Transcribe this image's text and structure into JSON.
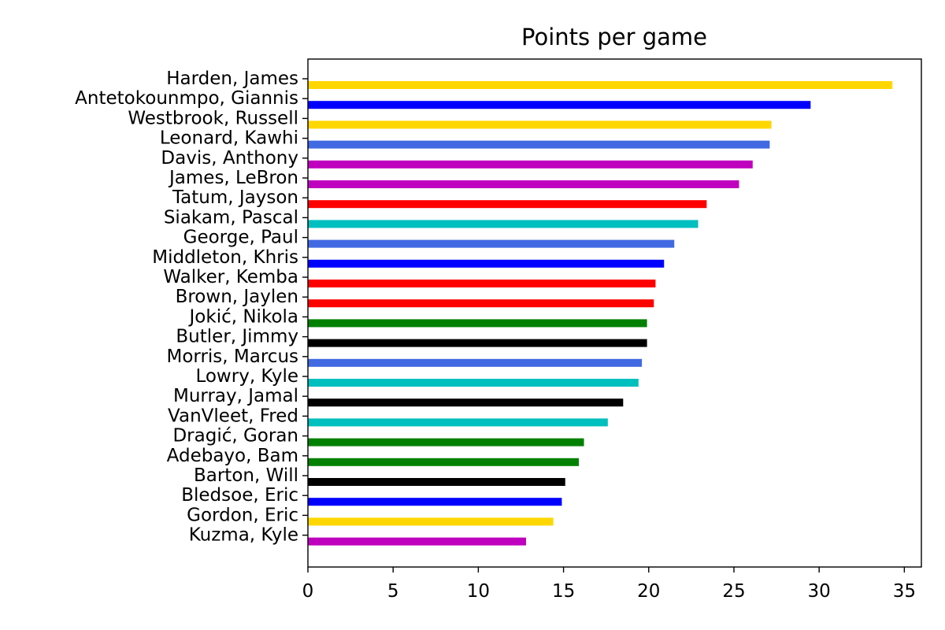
{
  "chart_data": {
    "type": "bar",
    "orientation": "horizontal",
    "title": "Points per game",
    "xlabel": "",
    "ylabel": "",
    "xlim": [
      0,
      36
    ],
    "xticks": [
      0,
      5,
      10,
      15,
      20,
      25,
      30,
      35
    ],
    "grid": false,
    "legend": "none",
    "categories": [
      "Harden, James",
      "Antetokounmpo, Giannis",
      "Westbrook, Russell",
      "Leonard, Kawhi",
      "Davis, Anthony",
      "James, LeBron",
      "Tatum, Jayson",
      "Siakam, Pascal",
      "George, Paul",
      "Middleton, Khris",
      "Walker, Kemba",
      "Brown, Jaylen",
      "Jokić, Nikola",
      "Butler, Jimmy",
      "Morris, Marcus",
      "Lowry, Kyle",
      "Murray, Jamal",
      "VanVleet, Fred",
      "Dragić, Goran",
      "Adebayo, Bam",
      "Barton, Will",
      "Bledsoe, Eric",
      "Gordon, Eric",
      "Kuzma, Kyle"
    ],
    "values": [
      34.3,
      29.5,
      27.2,
      27.1,
      26.1,
      25.3,
      23.4,
      22.9,
      21.5,
      20.9,
      20.4,
      20.3,
      19.9,
      19.9,
      19.6,
      19.4,
      18.5,
      17.6,
      16.2,
      15.9,
      15.1,
      14.9,
      14.4,
      12.8
    ],
    "colors": [
      "#FFD700",
      "#0000FF",
      "#FFD700",
      "#4169E1",
      "#BF00BF",
      "#BF00BF",
      "#FF0000",
      "#00BFBF",
      "#4169E1",
      "#0000FF",
      "#FF0000",
      "#FF0000",
      "#008000",
      "#000000",
      "#4169E1",
      "#00BFBF",
      "#000000",
      "#00BFBF",
      "#008000",
      "#008000",
      "#000000",
      "#0000FF",
      "#FFD700",
      "#BF00BF"
    ]
  }
}
